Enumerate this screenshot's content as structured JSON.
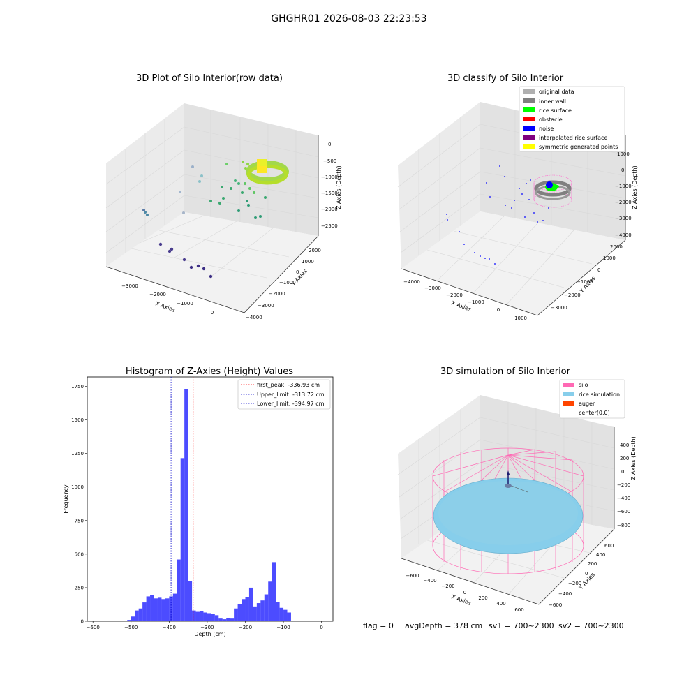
{
  "suptitle": "GHGHR01 2026-08-03 22:23:53",
  "footer": {
    "flag": "flag = 0",
    "avg": "avgDepth = 378 cm",
    "sv1": "sv1 = 700~2300",
    "sv2": "sv2 = 700~2300"
  },
  "chart_data": [
    {
      "type": "scatter",
      "title": "3D Plot of Silo Interior(row data)",
      "xlabel": "X Axies",
      "ylabel": "Y Axies",
      "zlabel": "Z Axies (Depth)",
      "x_ticks": [
        "−3000",
        "−2000",
        "−1000",
        "0"
      ],
      "y_ticks": [
        "−4000",
        "−3000",
        "−2000",
        "−1000",
        "0",
        "1000",
        "2000"
      ],
      "z_ticks": [
        "−2500",
        "−2000",
        "−1500",
        "−1000",
        "−500",
        "0"
      ]
    },
    {
      "type": "scatter",
      "title": "3D classify of Silo Interior",
      "xlabel": "X Axies",
      "ylabel": "Y Axies",
      "zlabel": "Z Axies (Depth)",
      "x_ticks": [
        "−4000",
        "−3000",
        "−2000",
        "−1000",
        "0",
        "1000"
      ],
      "y_ticks": [
        "−3000",
        "−2000",
        "−1000",
        "0",
        "1000",
        "2000"
      ],
      "z_ticks": [
        "−4000",
        "−3000",
        "−2000",
        "−1000",
        "0",
        "1000"
      ],
      "legend": [
        {
          "label": "original data",
          "color": "#b0b0b0"
        },
        {
          "label": "inner wall",
          "color": "#808080"
        },
        {
          "label": "rice surface",
          "color": "#00ff00"
        },
        {
          "label": "obstacle",
          "color": "#ff0000"
        },
        {
          "label": "noise",
          "color": "#0000ff"
        },
        {
          "label": "interpolated rice surface",
          "color": "#800080"
        },
        {
          "label": "symmetric generated points",
          "color": "#ffff00"
        }
      ]
    },
    {
      "type": "bar",
      "title": "Histogram of Z-Axies (Height) Values",
      "xlabel": "Depth (cm)",
      "ylabel": "Frequency",
      "xlim": [
        -615,
        30
      ],
      "ylim": [
        0,
        1820
      ],
      "x_ticks": [
        "−600",
        "−500",
        "−400",
        "−300",
        "−200",
        "−100",
        "0"
      ],
      "y_ticks": [
        "0",
        "250",
        "500",
        "750",
        "1000",
        "1250",
        "1500",
        "1750"
      ],
      "bar_color": "#0000ff",
      "bins": [
        [
          -510,
          -500,
          10
        ],
        [
          -500,
          -490,
          35
        ],
        [
          -490,
          -480,
          80
        ],
        [
          -480,
          -470,
          95
        ],
        [
          -470,
          -460,
          140
        ],
        [
          -460,
          -450,
          185
        ],
        [
          -450,
          -440,
          195
        ],
        [
          -440,
          -430,
          170
        ],
        [
          -430,
          -420,
          175
        ],
        [
          -420,
          -410,
          165
        ],
        [
          -410,
          -400,
          170
        ],
        [
          -400,
          -390,
          185
        ],
        [
          -390,
          -380,
          205
        ],
        [
          -380,
          -370,
          460
        ],
        [
          -370,
          -360,
          1215
        ],
        [
          -360,
          -350,
          1730
        ],
        [
          -350,
          -340,
          300
        ],
        [
          -340,
          -330,
          80
        ],
        [
          -330,
          -320,
          70
        ],
        [
          -320,
          -310,
          75
        ],
        [
          -310,
          -300,
          65
        ],
        [
          -300,
          -290,
          60
        ],
        [
          -290,
          -280,
          55
        ],
        [
          -280,
          -270,
          45
        ],
        [
          -270,
          -260,
          20
        ],
        [
          -260,
          -250,
          15
        ],
        [
          -250,
          -240,
          25
        ],
        [
          -240,
          -230,
          20
        ],
        [
          -230,
          -220,
          95
        ],
        [
          -220,
          -210,
          130
        ],
        [
          -210,
          -200,
          165
        ],
        [
          -200,
          -190,
          180
        ],
        [
          -190,
          -180,
          250
        ],
        [
          -180,
          -170,
          110
        ],
        [
          -170,
          -160,
          135
        ],
        [
          -160,
          -150,
          155
        ],
        [
          -150,
          -140,
          200
        ],
        [
          -140,
          -130,
          295
        ],
        [
          -130,
          -120,
          440
        ],
        [
          -120,
          -110,
          145
        ],
        [
          -110,
          -100,
          100
        ],
        [
          -100,
          -90,
          85
        ],
        [
          -90,
          -80,
          65
        ]
      ],
      "vlines": [
        {
          "label": "first_peak: -336.93 cm",
          "x": -336.93,
          "color": "#ff0000"
        },
        {
          "label": "Upper_limit: -313.72 cm",
          "x": -313.72,
          "color": "#0000cc"
        },
        {
          "label": "Lower_limit: -394.97 cm",
          "x": -394.97,
          "color": "#0000cc"
        }
      ]
    },
    {
      "type": "scatter",
      "title": "3D simulation of Silo Interior",
      "xlabel": "X Axies",
      "ylabel": "Y Axies",
      "zlabel": "Z Axies (Depth)",
      "x_ticks": [
        "−600",
        "−400",
        "−200",
        "0",
        "200",
        "400",
        "600"
      ],
      "y_ticks": [
        "−600",
        "−400",
        "−200",
        "0",
        "200",
        "400",
        "600"
      ],
      "z_ticks": [
        "−800",
        "−600",
        "−400",
        "−200",
        "0",
        "200",
        "400"
      ],
      "legend": [
        {
          "label": "silo",
          "color": "#ff69b4"
        },
        {
          "label": "rice simulation",
          "color": "#87ceeb"
        },
        {
          "label": "auger",
          "color": "#ff4500"
        },
        {
          "label": "center(0,0)",
          "color": ""
        }
      ]
    }
  ]
}
